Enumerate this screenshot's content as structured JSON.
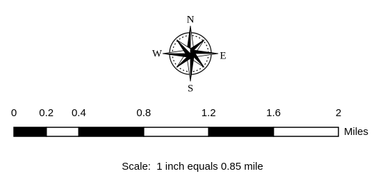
{
  "compass": {
    "north": "N",
    "east": "E",
    "south": "S",
    "west": "W"
  },
  "scale_bar": {
    "ticks": [
      0,
      0.2,
      0.4,
      0.8,
      1.2,
      1.6,
      2
    ],
    "unit": "Miles"
  },
  "scale_text": "Scale:  1 inch equals 0.85 mile"
}
